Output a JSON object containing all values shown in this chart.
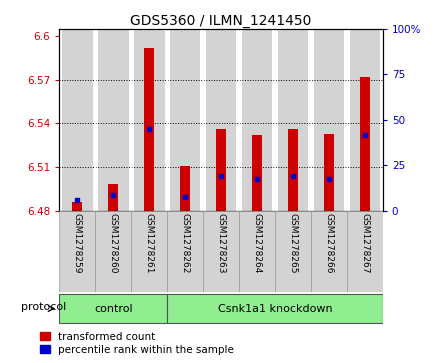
{
  "title": "GDS5360 / ILMN_1241450",
  "samples": [
    "GSM1278259",
    "GSM1278260",
    "GSM1278261",
    "GSM1278262",
    "GSM1278263",
    "GSM1278264",
    "GSM1278265",
    "GSM1278266",
    "GSM1278267"
  ],
  "bar_base": 6.48,
  "bar_tops": [
    6.486,
    6.498,
    6.592,
    6.511,
    6.536,
    6.532,
    6.536,
    6.533,
    6.572
  ],
  "percentile_values": [
    6.4875,
    6.491,
    6.536,
    6.489,
    6.504,
    6.502,
    6.504,
    6.502,
    6.532
  ],
  "ylim_left": [
    6.48,
    6.605
  ],
  "ylim_right": [
    0,
    100
  ],
  "yticks_left": [
    6.48,
    6.51,
    6.54,
    6.57,
    6.6
  ],
  "yticks_right": [
    0,
    25,
    50,
    75,
    100
  ],
  "bar_color": "#cc0000",
  "dot_color": "#0000cc",
  "control_samples": 3,
  "control_label": "control",
  "treatment_label": "Csnk1a1 knockdown",
  "protocol_label": "protocol",
  "legend_bar": "transformed count",
  "legend_dot": "percentile rank within the sample",
  "col_bg_color": "#d3d3d3",
  "group_color": "#90ee90",
  "title_fontsize": 10,
  "tick_fontsize": 7.5,
  "label_fontsize": 6.5,
  "group_fontsize": 8,
  "legend_fontsize": 7.5
}
